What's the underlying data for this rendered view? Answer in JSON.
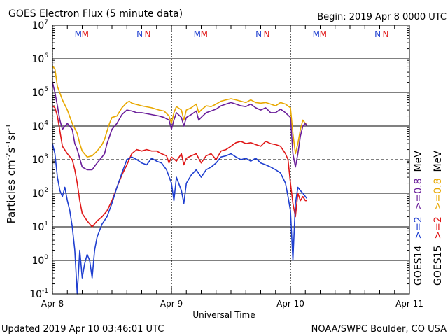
{
  "header": {
    "title": "GOES Electron Flux (5 minute data)",
    "begin": "Begin: 2019 Apr 8 0000 UTC"
  },
  "footer": {
    "updated": "Updated 2019 Apr 10 03:46:01 UTC",
    "source": "NOAA/SWPC Boulder, CO USA"
  },
  "colors": {
    "goes14_2mev": "#1f3fd0",
    "goes15_2mev": "#e01818",
    "goes14_08mev": "#6a1e9a",
    "goes15_08mev": "#e8a800",
    "m_marker_1": "#1f3fd0",
    "m_marker_2": "#e01818",
    "n_marker_1": "#1f3fd0",
    "n_marker_2": "#e01818"
  },
  "chart_data": {
    "type": "line",
    "title": "GOES Electron Flux (5 minute data)",
    "xlabel": "Universal Time",
    "ylabel": "Particles cm^-2 s^-1 sr^-1",
    "y_scale": "log",
    "ylim": [
      0.1,
      10000000
    ],
    "xlim": [
      0,
      72
    ],
    "x_units": "hours since 2019 Apr 8 0000 UTC",
    "x_ticks": [
      {
        "x": 0,
        "label": "Apr 8"
      },
      {
        "x": 24,
        "label": "Apr 9"
      },
      {
        "x": 48,
        "label": "Apr 10"
      },
      {
        "x": 72,
        "label": "Apr 11"
      }
    ],
    "y_ticks": [
      {
        "value": 0.1,
        "base": "10",
        "exp": "-1"
      },
      {
        "value": 1,
        "base": "10",
        "exp": "0"
      },
      {
        "value": 10,
        "base": "10",
        "exp": "1"
      },
      {
        "value": 100,
        "base": "10",
        "exp": "2"
      },
      {
        "value": 1000,
        "base": "10",
        "exp": "3"
      },
      {
        "value": 10000,
        "base": "10",
        "exp": "4"
      },
      {
        "value": 100000,
        "base": "10",
        "exp": "5"
      },
      {
        "value": 1000000,
        "base": "10",
        "exp": "6"
      },
      {
        "value": 10000000,
        "base": "10",
        "exp": "7"
      }
    ],
    "hgrid_solid": [
      1,
      10,
      100,
      10000,
      100000,
      1000000
    ],
    "hgrid_dashed": [
      1000
    ],
    "day_boundaries_dotted": [
      0,
      24,
      48
    ],
    "top_markers": [
      {
        "x": 5.2,
        "label": "M",
        "color_key": "m_marker_1"
      },
      {
        "x": 6.6,
        "label": "M",
        "color_key": "m_marker_2"
      },
      {
        "x": 17.6,
        "label": "N",
        "color_key": "n_marker_1"
      },
      {
        "x": 19.2,
        "label": "N",
        "color_key": "n_marker_2"
      },
      {
        "x": 29.2,
        "label": "M",
        "color_key": "m_marker_1"
      },
      {
        "x": 30.6,
        "label": "M",
        "color_key": "m_marker_2"
      },
      {
        "x": 41.6,
        "label": "N",
        "color_key": "n_marker_1"
      },
      {
        "x": 43.2,
        "label": "N",
        "color_key": "n_marker_2"
      },
      {
        "x": 53.2,
        "label": "M",
        "color_key": "m_marker_1"
      },
      {
        "x": 54.6,
        "label": "M",
        "color_key": "m_marker_2"
      },
      {
        "x": 65.6,
        "label": "N",
        "color_key": "n_marker_1"
      },
      {
        "x": 67.2,
        "label": "N",
        "color_key": "n_marker_2"
      }
    ],
    "legend": [
      {
        "label": "GOES14",
        "color_key": null
      },
      {
        "label": ">=2",
        "color_key": "goes14_2mev"
      },
      {
        "label": ">=0.8",
        "color_key": "goes14_08mev"
      },
      {
        "label": "MeV",
        "color_key": null
      },
      {
        "label": "GOES15",
        "color_key": null
      },
      {
        "label": ">=2",
        "color_key": "goes15_2mev"
      },
      {
        "label": ">=0.8",
        "color_key": "goes15_08mev"
      },
      {
        "label": "MeV",
        "color_key": null
      }
    ],
    "series": [
      {
        "name": "GOES15 >=0.8 MeV",
        "color_key": "goes15_08mev",
        "x": [
          0,
          0.5,
          1,
          2,
          3,
          4,
          5,
          5.5,
          6,
          7,
          8,
          9,
          10,
          10.5,
          11,
          11.5,
          12,
          13,
          14,
          15,
          15.5,
          16,
          18,
          20,
          21.5,
          22.5,
          23.5,
          24,
          24.5,
          25,
          26,
          26.5,
          27,
          28,
          29,
          29.5,
          30,
          31,
          32,
          33,
          34,
          35,
          36,
          37,
          38,
          39,
          40,
          41,
          42,
          43,
          44,
          45,
          46,
          47,
          48,
          48.5,
          49,
          49.5,
          50,
          50.5,
          51,
          51.3
        ],
        "values": [
          600000,
          500000,
          150000,
          60000,
          30000,
          12000,
          6000,
          3000,
          1800,
          1200,
          1300,
          1800,
          2800,
          4000,
          7000,
          12000,
          18000,
          20000,
          35000,
          50000,
          55000,
          48000,
          40000,
          35000,
          30000,
          28000,
          20000,
          12000,
          25000,
          38000,
          30000,
          15000,
          30000,
          35000,
          45000,
          25000,
          30000,
          40000,
          38000,
          45000,
          55000,
          60000,
          65000,
          60000,
          55000,
          50000,
          60000,
          50000,
          48000,
          50000,
          45000,
          40000,
          50000,
          45000,
          35000,
          6000,
          1500,
          3000,
          8000,
          15000,
          12000,
          11000
        ]
      },
      {
        "name": "GOES14 >=0.8 MeV",
        "color_key": "goes14_08mev",
        "x": [
          0,
          0.5,
          1,
          1.5,
          2,
          3,
          4,
          4.5,
          5,
          6,
          7,
          8,
          9,
          10,
          10.5,
          11,
          12,
          13,
          14,
          15,
          16,
          17,
          18,
          20,
          21.5,
          22.5,
          23.5,
          24,
          24.5,
          25,
          26,
          26.5,
          27,
          28,
          29,
          29.5,
          30,
          31,
          32,
          33,
          34,
          35,
          36,
          37,
          38,
          39,
          40,
          41,
          42,
          43,
          44,
          45,
          46,
          47,
          48,
          48.5,
          49,
          49.5,
          50,
          50.5,
          51,
          51.3
        ],
        "values": [
          200000,
          100000,
          40000,
          15000,
          8000,
          12000,
          8000,
          3000,
          2000,
          600,
          500,
          500,
          800,
          1200,
          1500,
          3000,
          8000,
          12000,
          22000,
          30000,
          28000,
          25000,
          25000,
          22000,
          20000,
          18000,
          15000,
          8000,
          15000,
          25000,
          18000,
          10000,
          18000,
          22000,
          28000,
          15000,
          18000,
          25000,
          28000,
          32000,
          40000,
          45000,
          50000,
          45000,
          40000,
          38000,
          45000,
          35000,
          30000,
          35000,
          25000,
          25000,
          32000,
          25000,
          18000,
          1500,
          600,
          1500,
          5000,
          10000,
          12000,
          10000
        ]
      },
      {
        "name": "GOES15 >=2 MeV",
        "color_key": "goes15_2mev",
        "x": [
          0,
          0.5,
          1,
          2,
          3,
          4,
          4.5,
          5,
          5.5,
          6,
          7,
          8,
          9,
          10,
          11,
          12,
          13,
          14,
          15,
          16,
          17,
          18,
          19,
          20,
          21,
          22,
          23,
          23.5,
          24,
          25,
          26,
          26.5,
          27,
          28,
          29,
          30,
          31,
          32,
          33,
          34,
          35,
          36,
          37,
          38,
          39,
          40,
          41,
          42,
          43,
          44,
          45,
          46,
          47,
          47.5,
          48,
          48.5,
          49,
          49.5,
          50,
          50.5,
          51,
          51.3
        ],
        "values": [
          40000,
          35000,
          20000,
          2500,
          1500,
          1000,
          500,
          200,
          60,
          25,
          15,
          10,
          15,
          20,
          30,
          60,
          150,
          350,
          700,
          1500,
          2000,
          1800,
          2000,
          1800,
          1800,
          1500,
          1300,
          800,
          1200,
          900,
          1500,
          700,
          1100,
          1300,
          1500,
          800,
          1300,
          1500,
          1000,
          1800,
          2000,
          2500,
          3200,
          3500,
          3000,
          3200,
          2800,
          2500,
          3500,
          3000,
          2800,
          2500,
          1500,
          1000,
          200,
          50,
          20,
          100,
          60,
          80,
          60,
          60
        ]
      },
      {
        "name": "GOES14 >=2 MeV",
        "color_key": "goes14_2mev",
        "x": [
          0,
          0.5,
          1,
          1.5,
          2,
          2.5,
          3,
          3.5,
          4,
          4.5,
          5,
          5.5,
          6,
          6.5,
          7,
          7.5,
          8,
          8.5,
          9,
          10,
          11,
          12,
          13,
          14,
          15,
          16,
          17,
          18,
          19,
          20,
          21,
          22,
          23,
          24,
          24.5,
          25,
          26,
          26.5,
          27,
          28,
          29,
          30,
          31,
          32,
          33,
          34,
          35,
          36,
          37,
          38,
          39,
          40,
          41,
          42,
          43,
          44,
          45,
          46,
          47,
          47.5,
          48,
          48.5,
          49,
          49.5,
          50,
          50.5,
          51,
          51.3
        ],
        "values": [
          3000,
          1500,
          300,
          120,
          80,
          150,
          60,
          30,
          10,
          2,
          0.1,
          2,
          0.3,
          0.8,
          1.5,
          1,
          0.3,
          2,
          5,
          12,
          20,
          50,
          150,
          400,
          1000,
          1200,
          1000,
          800,
          700,
          1100,
          900,
          800,
          500,
          200,
          60,
          300,
          120,
          50,
          200,
          350,
          500,
          300,
          500,
          600,
          800,
          1200,
          1300,
          1500,
          1200,
          1000,
          1100,
          900,
          1100,
          800,
          700,
          600,
          500,
          400,
          200,
          80,
          30,
          1,
          50,
          150,
          120,
          100,
          80,
          70
        ]
      }
    ]
  }
}
